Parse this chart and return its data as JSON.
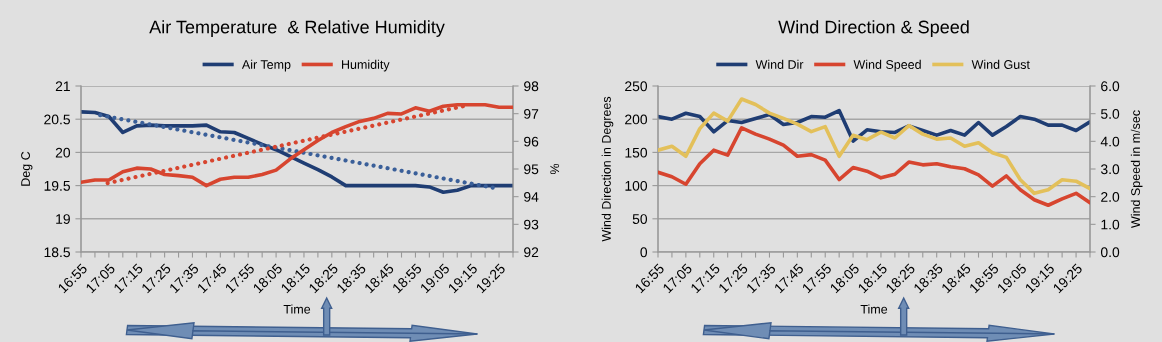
{
  "chart_data": [
    {
      "type": "line",
      "title": "Air Temperature  & Relative Humidity",
      "xlabel": "Time",
      "ylabel": "Deg C",
      "y2label": "%",
      "x": [
        16.9167,
        17.0,
        17.0833,
        17.1667,
        17.25,
        17.3333,
        17.4167,
        17.5,
        17.5833,
        17.6667,
        17.75,
        17.8333,
        17.9167,
        18.0,
        18.0833,
        18.1667,
        18.25,
        18.3333,
        18.4167,
        18.5,
        18.5833,
        18.6667,
        18.75,
        18.8333,
        18.9167,
        19.0,
        19.0833,
        19.1667,
        19.25,
        19.3333,
        19.4167,
        19.5
      ],
      "xlim": [
        16.9167,
        19.5
      ],
      "xticks": [
        {
          "value": 16.9167,
          "label": "16:55"
        },
        {
          "value": 17.0,
          "label": null
        },
        {
          "value": 17.0833,
          "label": "17:05"
        },
        {
          "value": 17.1667,
          "label": null
        },
        {
          "value": 17.25,
          "label": "17:15"
        },
        {
          "value": 17.3333,
          "label": null
        },
        {
          "value": 17.4167,
          "label": "17:25"
        },
        {
          "value": 17.5,
          "label": null
        },
        {
          "value": 17.5833,
          "label": "17:35"
        },
        {
          "value": 17.6667,
          "label": null
        },
        {
          "value": 17.75,
          "label": "17:45"
        },
        {
          "value": 17.8333,
          "label": null
        },
        {
          "value": 17.9167,
          "label": "17:55"
        },
        {
          "value": 18.0,
          "label": null
        },
        {
          "value": 18.0833,
          "label": "18:05"
        },
        {
          "value": 18.1667,
          "label": null
        },
        {
          "value": 18.25,
          "label": "18:15"
        },
        {
          "value": 18.3333,
          "label": null
        },
        {
          "value": 18.4167,
          "label": "18:25"
        },
        {
          "value": 18.5,
          "label": null
        },
        {
          "value": 18.5833,
          "label": "18:35"
        },
        {
          "value": 18.6667,
          "label": null
        },
        {
          "value": 18.75,
          "label": "18:45"
        },
        {
          "value": 18.8333,
          "label": null
        },
        {
          "value": 18.9167,
          "label": "18:55"
        },
        {
          "value": 19.0,
          "label": null
        },
        {
          "value": 19.0833,
          "label": "19:05"
        },
        {
          "value": 19.1667,
          "label": null
        },
        {
          "value": 19.25,
          "label": "19:15"
        },
        {
          "value": 19.3333,
          "label": null
        },
        {
          "value": 19.4167,
          "label": "19:25"
        },
        {
          "value": 19.5,
          "label": null
        }
      ],
      "ylim": [
        18.5,
        21
      ],
      "yticks": [
        18.5,
        19,
        19.5,
        20,
        20.5,
        21
      ],
      "y2lim": [
        92,
        98
      ],
      "y2ticks": [
        92,
        93,
        94,
        95,
        96,
        97,
        98
      ],
      "grid": "y",
      "legend": "top",
      "marker": "none",
      "series": [
        {
          "name": "Air Temp",
          "color": "#1f3d73",
          "line_style": "solid",
          "values": [
            20.61,
            20.6,
            20.54,
            20.3,
            20.4,
            20.41,
            20.4,
            20.4,
            20.4,
            20.41,
            20.31,
            20.3,
            20.21,
            20.12,
            20.04,
            19.94,
            19.84,
            19.74,
            19.63,
            19.5,
            19.5,
            19.5,
            19.5,
            19.5,
            19.5,
            19.48,
            19.4,
            19.43,
            19.5,
            19.5,
            19.5,
            19.5
          ]
        },
        {
          "name": "Humidity",
          "color": "#d7452f",
          "axis": "y2",
          "line_style": "solid",
          "values": [
            94.52,
            94.6,
            94.6,
            94.9,
            95.03,
            95.0,
            94.8,
            94.76,
            94.7,
            94.4,
            94.63,
            94.7,
            94.7,
            94.8,
            94.96,
            95.36,
            95.7,
            96.03,
            96.32,
            96.53,
            96.72,
            96.83,
            97.01,
            96.99,
            97.21,
            97.09,
            97.27,
            97.32,
            97.32,
            97.32,
            97.23,
            97.23
          ]
        },
        {
          "type": "line",
          "color": "#3a5f99",
          "line_style": "dotted",
          "x": [
            17.032,
            19.4
          ],
          "values": [
            20.56,
            19.46
          ]
        },
        {
          "type": "line",
          "color": "#d7452f",
          "axis": "y2",
          "line_style": "dotted",
          "x": [
            17.076,
            19.217
          ],
          "values": [
            94.49,
            97.29
          ]
        }
      ]
    },
    {
      "type": "line",
      "title": "Wind Direction & Speed",
      "xlabel": "Time",
      "ylabel": "Wind Direction in Degrees",
      "y2label": "Wind Speed in m/sec",
      "x": [
        16.9167,
        17.0,
        17.0833,
        17.1667,
        17.25,
        17.3333,
        17.4167,
        17.5,
        17.5833,
        17.6667,
        17.75,
        17.8333,
        17.9167,
        18.0,
        18.0833,
        18.1667,
        18.25,
        18.3333,
        18.4167,
        18.5,
        18.5833,
        18.6667,
        18.75,
        18.8333,
        18.9167,
        19.0,
        19.0833,
        19.1667,
        19.25,
        19.3333,
        19.4167,
        19.5
      ],
      "xlim": [
        16.9167,
        19.5
      ],
      "xticks": [
        {
          "value": 16.9167,
          "label": "16:55"
        },
        {
          "value": 17.0,
          "label": null
        },
        {
          "value": 17.0833,
          "label": "17:05"
        },
        {
          "value": 17.1667,
          "label": null
        },
        {
          "value": 17.25,
          "label": "17:15"
        },
        {
          "value": 17.3333,
          "label": null
        },
        {
          "value": 17.4167,
          "label": "17:25"
        },
        {
          "value": 17.5,
          "label": null
        },
        {
          "value": 17.5833,
          "label": "17:35"
        },
        {
          "value": 17.6667,
          "label": null
        },
        {
          "value": 17.75,
          "label": "17:45"
        },
        {
          "value": 17.8333,
          "label": null
        },
        {
          "value": 17.9167,
          "label": "17:55"
        },
        {
          "value": 18.0,
          "label": null
        },
        {
          "value": 18.0833,
          "label": "18:05"
        },
        {
          "value": 18.1667,
          "label": null
        },
        {
          "value": 18.25,
          "label": "18:15"
        },
        {
          "value": 18.3333,
          "label": null
        },
        {
          "value": 18.4167,
          "label": "18:25"
        },
        {
          "value": 18.5,
          "label": null
        },
        {
          "value": 18.5833,
          "label": "18:35"
        },
        {
          "value": 18.6667,
          "label": null
        },
        {
          "value": 18.75,
          "label": "18:45"
        },
        {
          "value": 18.8333,
          "label": null
        },
        {
          "value": 18.9167,
          "label": "18:55"
        },
        {
          "value": 19.0,
          "label": null
        },
        {
          "value": 19.0833,
          "label": "19:05"
        },
        {
          "value": 19.1667,
          "label": null
        },
        {
          "value": 19.25,
          "label": "19:15"
        },
        {
          "value": 19.3333,
          "label": null
        },
        {
          "value": 19.4167,
          "label": "19:25"
        },
        {
          "value": 19.5,
          "label": null
        }
      ],
      "ylim": [
        0,
        250
      ],
      "yticks": [
        0,
        50,
        100,
        150,
        200,
        250
      ],
      "y2lim": [
        0,
        6
      ],
      "y2ticks": [
        {
          "value": 0,
          "label": "0.0"
        },
        {
          "value": 1,
          "label": "1.0"
        },
        {
          "value": 2,
          "label": "2.0"
        },
        {
          "value": 3,
          "label": "3.0"
        },
        {
          "value": 4,
          "label": "4.0"
        },
        {
          "value": 5,
          "label": "5.0"
        },
        {
          "value": 6,
          "label": "6.0"
        }
      ],
      "grid": "y",
      "legend": "top",
      "marker": "none",
      "series": [
        {
          "name": "Wind Dir",
          "color": "#1f3d73",
          "line_style": "solid",
          "values": [
            204,
            200,
            209,
            204,
            181,
            198,
            195,
            201,
            207,
            192,
            195,
            204,
            203,
            213,
            167,
            184,
            181,
            180,
            190,
            183,
            176,
            183,
            176,
            195,
            176,
            189,
            204,
            200,
            191,
            191,
            183,
            196
          ]
        },
        {
          "name": "Wind Speed",
          "color": "#d7452f",
          "axis": "y2",
          "line_style": "solid",
          "values": [
            2.88,
            2.72,
            2.45,
            3.19,
            3.68,
            3.5,
            4.49,
            4.26,
            4.08,
            3.86,
            3.46,
            3.52,
            3.32,
            2.62,
            3.05,
            2.92,
            2.68,
            2.81,
            3.25,
            3.15,
            3.19,
            3.08,
            3.01,
            2.79,
            2.38,
            2.75,
            2.25,
            1.89,
            1.69,
            1.92,
            2.12,
            1.78
          ]
        },
        {
          "name": "Wind Gust",
          "color": "#e3c05a",
          "axis": "y2",
          "line_style": "solid",
          "values": [
            3.68,
            3.82,
            3.46,
            4.46,
            5.02,
            4.73,
            5.53,
            5.33,
            5.02,
            4.83,
            4.62,
            4.35,
            4.53,
            3.46,
            4.22,
            4.06,
            4.33,
            4.12,
            4.57,
            4.26,
            4.08,
            4.12,
            3.82,
            3.95,
            3.59,
            3.42,
            2.61,
            2.12,
            2.25,
            2.61,
            2.56,
            2.29
          ]
        }
      ]
    }
  ]
}
